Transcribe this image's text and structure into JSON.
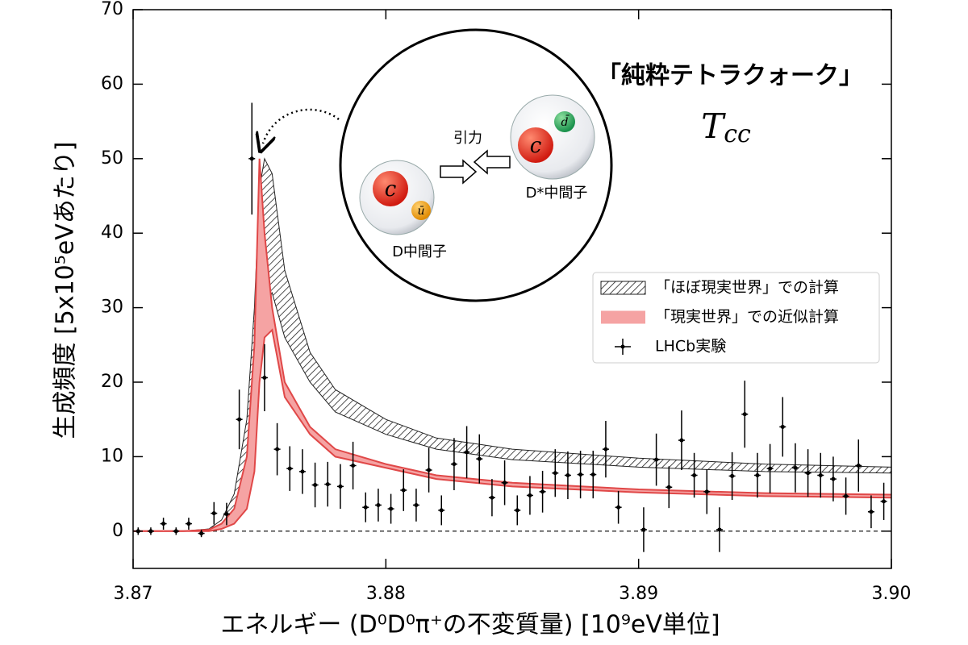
{
  "chart_data": {
    "type": "errorbar",
    "xlabel": "エネルギー (D⁰D⁰π⁺の不変質量) [10⁹eV単位]",
    "ylabel": "生成頻度 [5x10⁵eVあたり]",
    "xlim": [
      3.87,
      3.9
    ],
    "ylim": [
      -5,
      70
    ],
    "xticks": [
      3.87,
      3.88,
      3.89,
      {
        "value": 3.9,
        "label": "3.90"
      }
    ],
    "yticks": [
      0,
      10,
      20,
      30,
      40,
      50,
      60,
      70
    ],
    "zero_line": true,
    "legend_position": "right",
    "series": [
      {
        "name": "「ほぼ現実世界」での計算",
        "type": "band",
        "hatch": true,
        "color": "#222222",
        "x": [
          3.87,
          3.872,
          3.873,
          3.8735,
          3.874,
          3.8745,
          3.8748,
          3.875,
          3.8752,
          3.8755,
          3.876,
          3.877,
          3.878,
          3.88,
          3.882,
          3.885,
          3.89,
          3.895,
          3.9
        ],
        "upper": [
          0,
          0,
          0.3,
          1.5,
          5,
          15,
          30,
          46,
          50,
          48,
          35,
          24,
          19,
          15,
          12.5,
          11,
          9.8,
          9,
          8.6
        ],
        "lower": [
          0,
          0,
          0,
          0.5,
          2,
          6,
          14,
          25,
          30,
          32,
          26,
          20,
          16,
          13,
          11,
          9.6,
          8.6,
          8,
          7.8
        ]
      },
      {
        "name": "「現実世界」での近似計算",
        "type": "band",
        "hatch": false,
        "color": "#f5a3a3",
        "edge_color": "#e04848",
        "x": [
          3.87,
          3.872,
          3.873,
          3.8735,
          3.874,
          3.8745,
          3.8748,
          3.875,
          3.8752,
          3.8755,
          3.876,
          3.877,
          3.878,
          3.88,
          3.882,
          3.885,
          3.89,
          3.895,
          3.9
        ],
        "upper": [
          0,
          0,
          0.2,
          1,
          3,
          10,
          25,
          50,
          40,
          30,
          20,
          14,
          11,
          9,
          7.5,
          6.5,
          5.6,
          5.1,
          4.9
        ],
        "lower": [
          0,
          0,
          0,
          0.3,
          1,
          3,
          8,
          20,
          26,
          27,
          18,
          13,
          10,
          8.5,
          7,
          6,
          5.2,
          4.7,
          4.5
        ]
      },
      {
        "name": "LHCb実験",
        "type": "points",
        "color": "#000000",
        "x": [
          3.8702,
          3.8707,
          3.8712,
          3.8717,
          3.8722,
          3.8727,
          3.8732,
          3.8737,
          3.8742,
          3.8747,
          3.8752,
          3.8757,
          3.8762,
          3.8767,
          3.8772,
          3.8777,
          3.8782,
          3.8787,
          3.8792,
          3.8797,
          3.8802,
          3.8807,
          3.8812,
          3.8817,
          3.8822,
          3.8827,
          3.8832,
          3.8837,
          3.8842,
          3.8847,
          3.8852,
          3.8857,
          3.8862,
          3.8867,
          3.8872,
          3.8877,
          3.8882,
          3.8887,
          3.8892,
          3.8902,
          3.8907,
          3.8912,
          3.8917,
          3.8922,
          3.8927,
          3.8932,
          3.8937,
          3.8942,
          3.8947,
          3.8952,
          3.8957,
          3.8962,
          3.8967,
          3.8972,
          3.8977,
          3.8982,
          3.8987,
          3.8992,
          3.8997
        ],
        "values": [
          0,
          0,
          1,
          0,
          1,
          -0.3,
          2.4,
          2.3,
          15,
          50,
          20.6,
          11,
          8.4,
          8,
          6.2,
          6.3,
          6,
          8.8,
          3.2,
          3.5,
          3,
          5.5,
          3.5,
          8.2,
          2.8,
          9,
          10.6,
          9.7,
          4.5,
          6.5,
          2.8,
          4.8,
          5.3,
          7.8,
          7.5,
          7.6,
          7.6,
          11,
          3.2,
          0.2,
          9.6,
          5.9,
          12.2,
          7.5,
          5.3,
          0.2,
          7.4,
          15.7,
          7.5,
          8.4,
          14,
          8.5,
          7.8,
          7.5,
          7,
          4.7,
          8.8,
          2.6,
          4
        ],
        "errors": [
          0.5,
          0.5,
          0.8,
          0.5,
          0.8,
          0.5,
          1.5,
          1.5,
          4,
          7.5,
          4.5,
          3.5,
          3,
          3,
          3,
          3,
          3,
          3.2,
          2,
          2.2,
          2,
          2.8,
          2.2,
          3,
          2,
          3.5,
          3.5,
          3.3,
          2.5,
          3,
          2,
          2.6,
          2.8,
          3.2,
          3.2,
          3.2,
          3.2,
          3.8,
          2.2,
          3,
          3.5,
          2.8,
          4,
          3,
          3,
          3,
          3.2,
          4.5,
          3,
          3.3,
          4,
          3.3,
          3.2,
          3,
          3,
          2.5,
          3.5,
          2.2,
          2.5
        ]
      }
    ],
    "annotations": {
      "title": "「純粋テトラクォーク」",
      "symbol": "T",
      "symbol_sub": "cc",
      "attraction": "引力",
      "d_meson": "D中間子",
      "dstar_meson": "D*中間子",
      "quark_c1": "c",
      "quark_u": "ū",
      "quark_c2": "c",
      "quark_d": "d̄"
    }
  }
}
